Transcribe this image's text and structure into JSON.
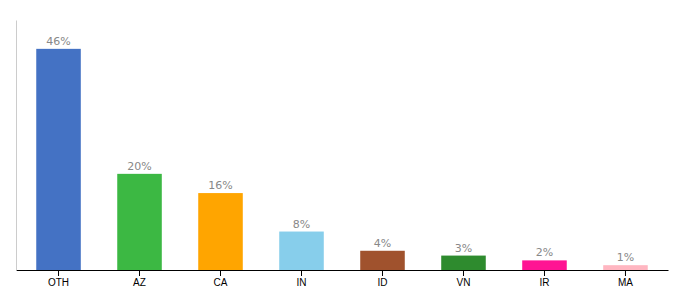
{
  "chart_data": {
    "type": "bar",
    "categories": [
      "OTH",
      "AZ",
      "CA",
      "IN",
      "ID",
      "VN",
      "IR",
      "MA"
    ],
    "values": [
      46,
      20,
      16,
      8,
      4,
      3,
      2,
      1
    ],
    "value_labels": [
      "46%",
      "20%",
      "16%",
      "8%",
      "4%",
      "3%",
      "2%",
      "1%"
    ],
    "colors": [
      "#4472C4",
      "#3CB843",
      "#FFA500",
      "#87CEEB",
      "#A0522D",
      "#2E8B2E",
      "#FF1493",
      "#FFB6C1"
    ],
    "ylim": [
      0,
      52
    ],
    "data_labels": true,
    "tick_labels": "x",
    "grid": false
  }
}
